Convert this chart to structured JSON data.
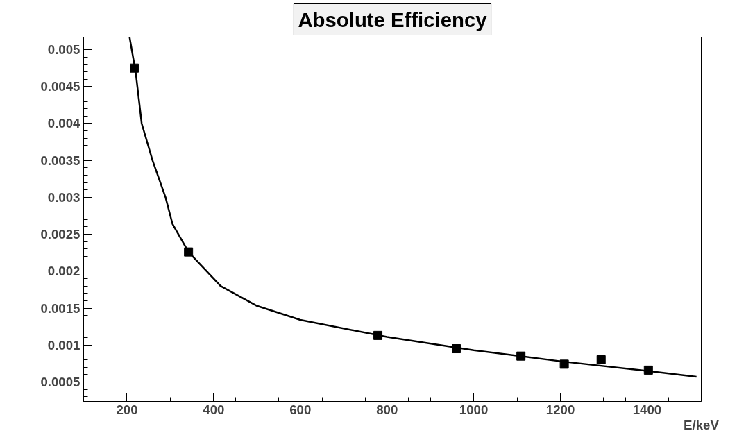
{
  "chart_data": {
    "type": "scatter",
    "title": "Absolute Efficiency",
    "xlabel": "E/keV",
    "x": [
      217,
      342,
      779,
      960,
      1109,
      1209,
      1294,
      1403
    ],
    "series": [
      {
        "color": "#000000",
        "marker": "square",
        "values": [
          0.00475,
          0.00226,
          0.00113,
          0.00095,
          0.00085,
          0.00074,
          0.0008,
          0.00066
        ]
      },
      {
        "type": "line",
        "color": "#000000",
        "line_style": "solid",
        "marker": "none",
        "x": [
          206,
          220,
          234,
          259,
          289,
          305,
          342,
          416,
          500,
          600,
          800,
          1000,
          1200,
          1400,
          1514
        ],
        "values": [
          0.00517,
          0.0047,
          0.004,
          0.0035,
          0.003,
          0.00264,
          0.00226,
          0.0018,
          0.00153,
          0.00134,
          0.00111,
          0.00093,
          0.00078,
          0.00065,
          0.00057
        ]
      }
    ],
    "xlim": [
      100,
      1525
    ],
    "ylim": [
      0.000236,
      0.00517
    ],
    "xticks": [
      200,
      400,
      600,
      800,
      1000,
      1200,
      1400
    ],
    "yticks": [
      0.0005,
      0.001,
      0.0015,
      0.002,
      0.0025,
      0.003,
      0.0035,
      0.004,
      0.0045,
      0.005
    ],
    "grid": false
  }
}
